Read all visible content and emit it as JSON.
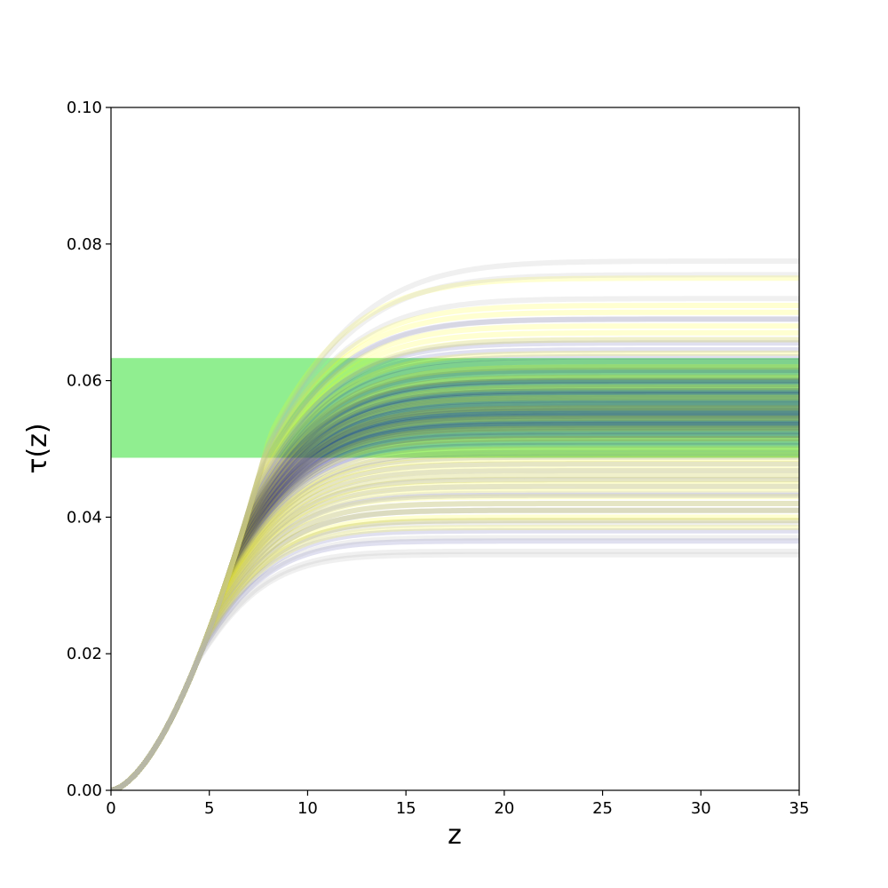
{
  "chart_data": {
    "type": "line",
    "xlabel": "z",
    "ylabel": "τ(z)",
    "xlim": [
      0,
      35
    ],
    "ylim": [
      0.0,
      0.1
    ],
    "x_ticks": [
      0,
      5,
      10,
      15,
      20,
      25,
      30,
      35
    ],
    "x_tick_labels": [
      "0",
      "5",
      "10",
      "15",
      "20",
      "25",
      "30",
      "35"
    ],
    "y_ticks": [
      0.0,
      0.02,
      0.04,
      0.06,
      0.08,
      0.1
    ],
    "y_tick_labels": [
      "0.00",
      "0.02",
      "0.04",
      "0.06",
      "0.08",
      "0.10"
    ],
    "grid": false,
    "band": {
      "y_low": 0.0487,
      "y_high": 0.0633,
      "color": "#90ee90"
    },
    "series": [
      {
        "color": "#000080",
        "opacity": 0.12,
        "curves": [
          {
            "tau_max": 0.052,
            "z_reion": 9.5
          },
          {
            "tau_max": 0.0535,
            "z_reion": 10.0
          },
          {
            "tau_max": 0.0548,
            "z_reion": 10.4
          },
          {
            "tau_max": 0.0555,
            "z_reion": 10.7
          },
          {
            "tau_max": 0.0562,
            "z_reion": 11.0
          },
          {
            "tau_max": 0.057,
            "z_reion": 11.2
          },
          {
            "tau_max": 0.0578,
            "z_reion": 11.5
          },
          {
            "tau_max": 0.0585,
            "z_reion": 11.8
          },
          {
            "tau_max": 0.059,
            "z_reion": 12.0
          },
          {
            "tau_max": 0.0598,
            "z_reion": 12.3
          },
          {
            "tau_max": 0.0605,
            "z_reion": 12.6
          },
          {
            "tau_max": 0.0612,
            "z_reion": 12.9
          },
          {
            "tau_max": 0.062,
            "z_reion": 13.2
          },
          {
            "tau_max": 0.0628,
            "z_reion": 13.5
          },
          {
            "tau_max": 0.0635,
            "z_reion": 13.8
          },
          {
            "tau_max": 0.0645,
            "z_reion": 14.2
          },
          {
            "tau_max": 0.0655,
            "z_reion": 14.6
          },
          {
            "tau_max": 0.0505,
            "z_reion": 9.1
          },
          {
            "tau_max": 0.0495,
            "z_reion": 8.8
          },
          {
            "tau_max": 0.0488,
            "z_reion": 8.5
          },
          {
            "tau_max": 0.0478,
            "z_reion": 8.2
          },
          {
            "tau_max": 0.0468,
            "z_reion": 7.9
          },
          {
            "tau_max": 0.0455,
            "z_reion": 7.6
          },
          {
            "tau_max": 0.0445,
            "z_reion": 7.3
          },
          {
            "tau_max": 0.0432,
            "z_reion": 7.0
          },
          {
            "tau_max": 0.042,
            "z_reion": 6.7
          },
          {
            "tau_max": 0.041,
            "z_reion": 6.5
          },
          {
            "tau_max": 0.0395,
            "z_reion": 6.2
          },
          {
            "tau_max": 0.038,
            "z_reion": 5.9
          },
          {
            "tau_max": 0.0365,
            "z_reion": 5.6
          },
          {
            "tau_max": 0.0525,
            "z_reion": 9.7
          },
          {
            "tau_max": 0.054,
            "z_reion": 10.2
          },
          {
            "tau_max": 0.0552,
            "z_reion": 10.6
          },
          {
            "tau_max": 0.0566,
            "z_reion": 11.1
          },
          {
            "tau_max": 0.0574,
            "z_reion": 11.4
          },
          {
            "tau_max": 0.0582,
            "z_reion": 11.7
          },
          {
            "tau_max": 0.0594,
            "z_reion": 12.2
          },
          {
            "tau_max": 0.06,
            "z_reion": 12.4
          },
          {
            "tau_max": 0.0532,
            "z_reion": 9.9
          },
          {
            "tau_max": 0.0545,
            "z_reion": 10.3
          },
          {
            "tau_max": 0.0558,
            "z_reion": 10.8
          },
          {
            "tau_max": 0.0515,
            "z_reion": 9.3
          },
          {
            "tau_max": 0.0528,
            "z_reion": 9.8
          },
          {
            "tau_max": 0.0542,
            "z_reion": 10.1
          },
          {
            "tau_max": 0.056,
            "z_reion": 10.9
          },
          {
            "tau_max": 0.051,
            "z_reion": 9.2
          },
          {
            "tau_max": 0.058,
            "z_reion": 11.6
          },
          {
            "tau_max": 0.0536,
            "z_reion": 10.0
          },
          {
            "tau_max": 0.055,
            "z_reion": 10.5
          },
          {
            "tau_max": 0.0565,
            "z_reion": 11.0
          },
          {
            "tau_max": 0.052,
            "z_reion": 9.6
          },
          {
            "tau_max": 0.069,
            "z_reion": 15.5
          },
          {
            "tau_max": 0.06,
            "z_reion": 12.5
          },
          {
            "tau_max": 0.0572,
            "z_reion": 11.3
          },
          {
            "tau_max": 0.0585,
            "z_reion": 11.9
          },
          {
            "tau_max": 0.0538,
            "z_reion": 10.1
          },
          {
            "tau_max": 0.0548,
            "z_reion": 10.5
          },
          {
            "tau_max": 0.0556,
            "z_reion": 10.8
          },
          {
            "tau_max": 0.053,
            "z_reion": 9.8
          },
          {
            "tau_max": 0.0615,
            "z_reion": 13.0
          }
        ]
      },
      {
        "color": "#ffff00",
        "opacity": 0.18,
        "curves": [
          {
            "tau_max": 0.04,
            "z_reion": 6.4
          },
          {
            "tau_max": 0.042,
            "z_reion": 6.9
          },
          {
            "tau_max": 0.044,
            "z_reion": 7.3
          },
          {
            "tau_max": 0.0455,
            "z_reion": 7.7
          },
          {
            "tau_max": 0.047,
            "z_reion": 8.0
          },
          {
            "tau_max": 0.0485,
            "z_reion": 8.4
          },
          {
            "tau_max": 0.05,
            "z_reion": 8.9
          },
          {
            "tau_max": 0.0515,
            "z_reion": 9.3
          },
          {
            "tau_max": 0.053,
            "z_reion": 9.8
          },
          {
            "tau_max": 0.0545,
            "z_reion": 10.3
          },
          {
            "tau_max": 0.056,
            "z_reion": 10.8
          },
          {
            "tau_max": 0.0575,
            "z_reion": 11.4
          },
          {
            "tau_max": 0.059,
            "z_reion": 12.0
          },
          {
            "tau_max": 0.0605,
            "z_reion": 12.6
          },
          {
            "tau_max": 0.062,
            "z_reion": 13.2
          },
          {
            "tau_max": 0.064,
            "z_reion": 14.0
          },
          {
            "tau_max": 0.066,
            "z_reion": 14.8
          },
          {
            "tau_max": 0.068,
            "z_reion": 15.5
          },
          {
            "tau_max": 0.07,
            "z_reion": 16.3
          },
          {
            "tau_max": 0.075,
            "z_reion": 18.0
          },
          {
            "tau_max": 0.0385,
            "z_reion": 6.1
          },
          {
            "tau_max": 0.041,
            "z_reion": 6.7
          },
          {
            "tau_max": 0.0448,
            "z_reion": 7.5
          },
          {
            "tau_max": 0.0462,
            "z_reion": 7.8
          },
          {
            "tau_max": 0.0478,
            "z_reion": 8.2
          },
          {
            "tau_max": 0.0492,
            "z_reion": 8.6
          },
          {
            "tau_max": 0.0395,
            "z_reion": 6.3
          },
          {
            "tau_max": 0.043,
            "z_reion": 7.1
          },
          {
            "tau_max": 0.067,
            "z_reion": 15.2
          },
          {
            "tau_max": 0.071,
            "z_reion": 16.8
          }
        ]
      },
      {
        "color": "#b4b4b4",
        "opacity": 0.2,
        "curves": [
          {
            "tau_max": 0.0775,
            "z_reion": 12.5
          },
          {
            "tau_max": 0.0755,
            "z_reion": 13.5
          },
          {
            "tau_max": 0.072,
            "z_reion": 15.0
          },
          {
            "tau_max": 0.069,
            "z_reion": 14.0
          },
          {
            "tau_max": 0.066,
            "z_reion": 13.0
          },
          {
            "tau_max": 0.035,
            "z_reion": 4.8
          },
          {
            "tau_max": 0.0345,
            "z_reion": 4.3
          },
          {
            "tau_max": 0.037,
            "z_reion": 5.2
          },
          {
            "tau_max": 0.039,
            "z_reion": 5.6
          },
          {
            "tau_max": 0.041,
            "z_reion": 6.0
          },
          {
            "tau_max": 0.0435,
            "z_reion": 6.6
          },
          {
            "tau_max": 0.046,
            "z_reion": 7.2
          }
        ]
      }
    ]
  }
}
